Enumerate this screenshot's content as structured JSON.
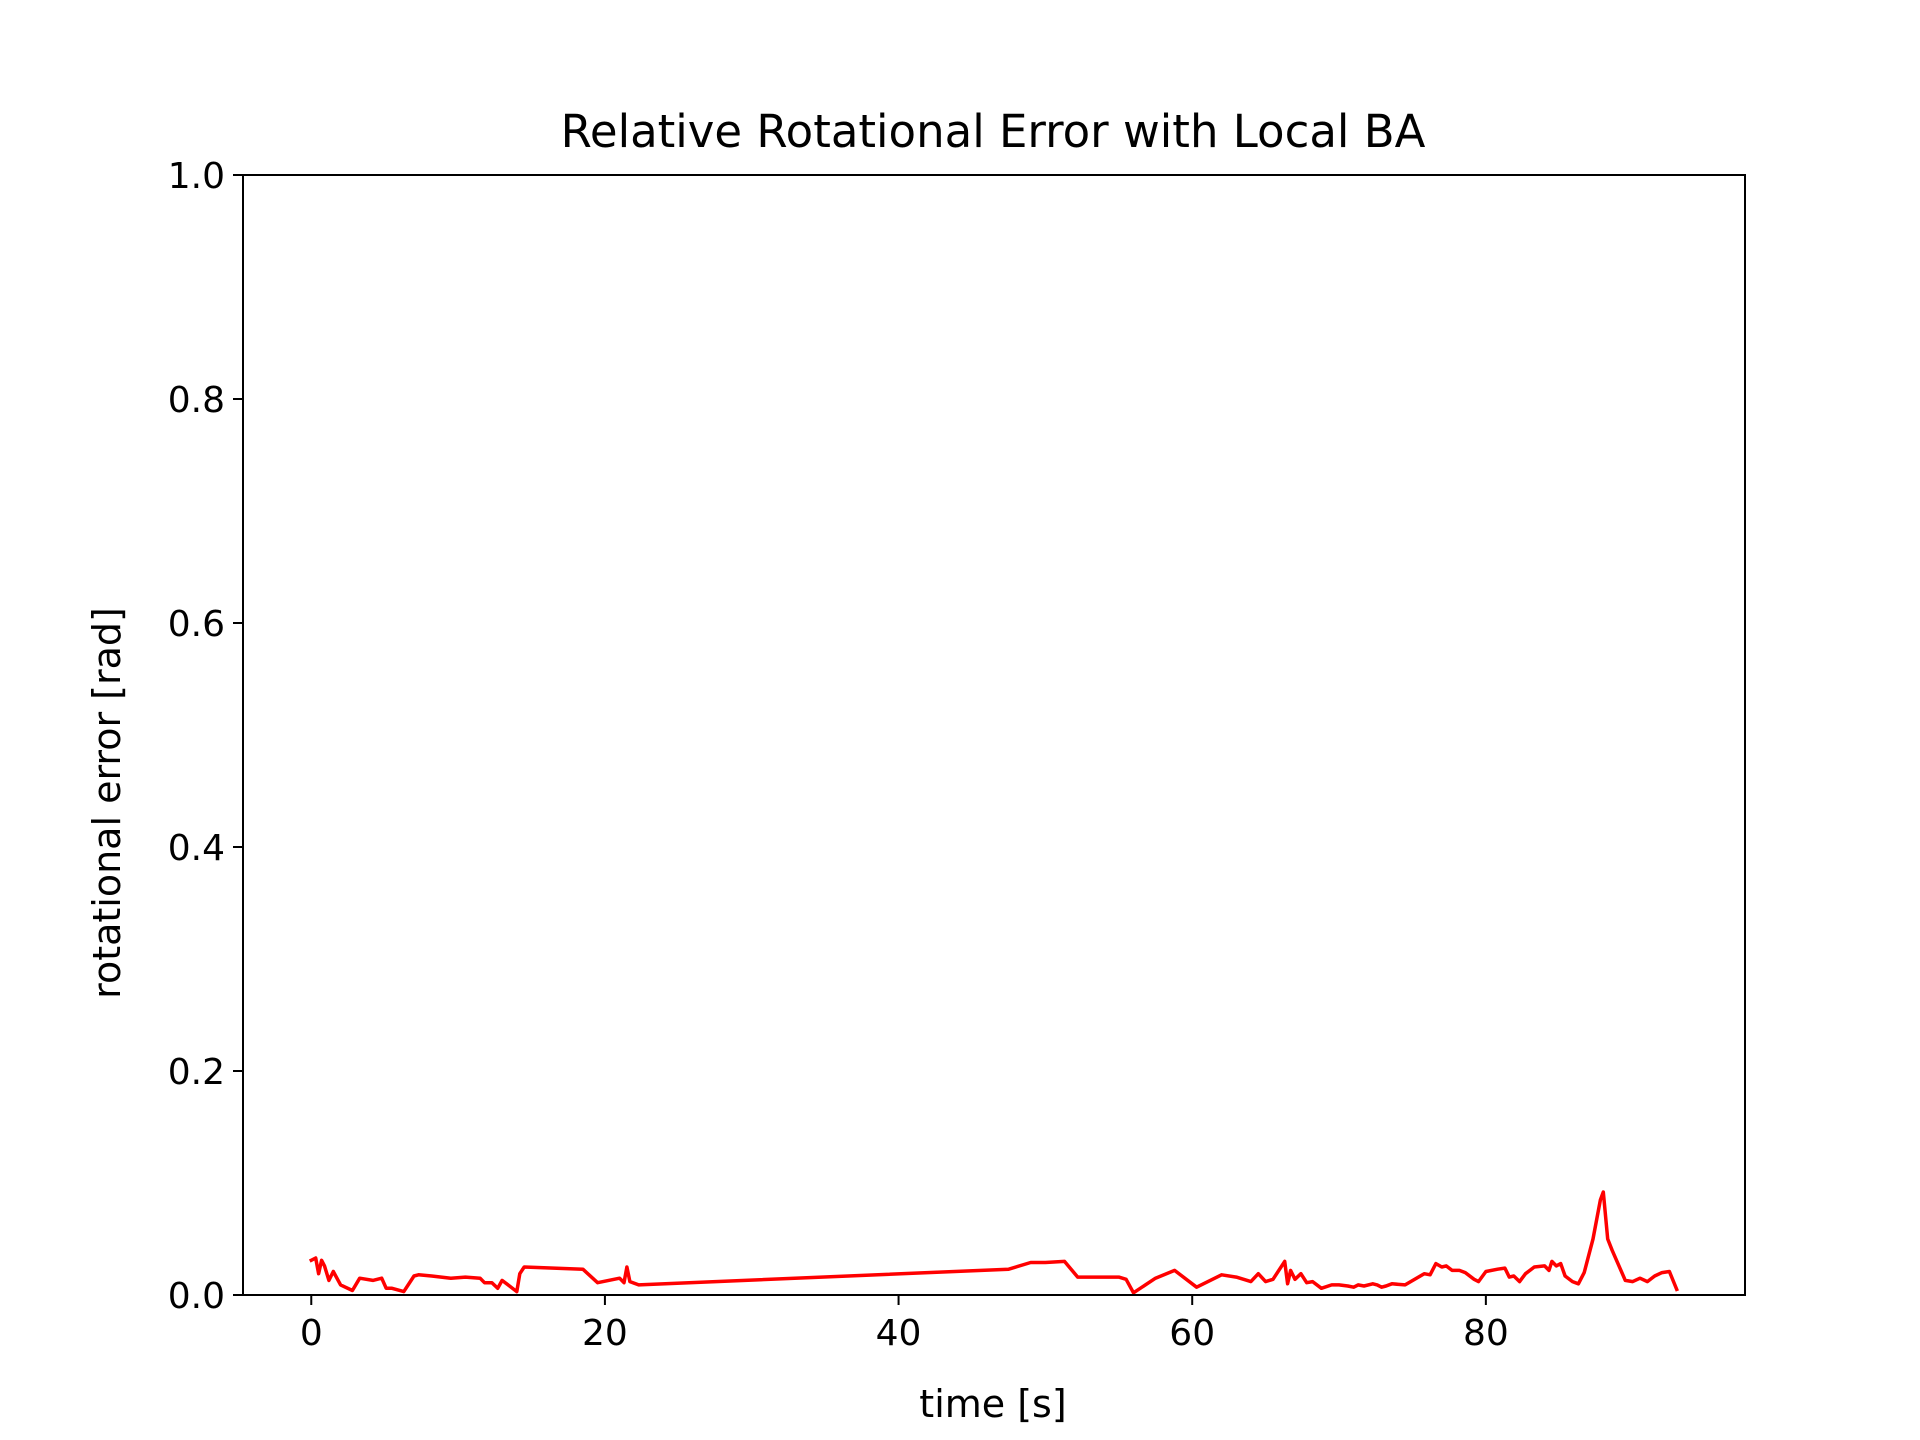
{
  "chart_data": {
    "type": "line",
    "title": "Relative Rotational Error with Local BA",
    "xlabel": "time [s]",
    "ylabel": "rotational error [rad]",
    "xlim": [
      -4.65,
      97.65
    ],
    "ylim": [
      0.0,
      1.0
    ],
    "xticks": [
      0,
      20,
      40,
      60,
      80
    ],
    "xtick_labels": [
      "0",
      "20",
      "40",
      "60",
      "80"
    ],
    "yticks": [
      0.0,
      0.2,
      0.4,
      0.6,
      0.8,
      1.0
    ],
    "ytick_labels": [
      "0.0",
      "0.2",
      "0.4",
      "0.6",
      "0.8",
      "1.0"
    ],
    "grid": false,
    "legend": "none",
    "series": [
      {
        "color": "#ff0000",
        "x": [
          0.0,
          0.3,
          0.5,
          0.7,
          0.9,
          1.2,
          1.5,
          2.0,
          2.8,
          3.3,
          4.2,
          4.8,
          5.1,
          5.5,
          6.3,
          7.0,
          7.3,
          8.2,
          9.5,
          10.5,
          11.5,
          11.8,
          12.3,
          12.7,
          13.0,
          13.5,
          14.0,
          14.2,
          14.5,
          18.5,
          19.5,
          21.0,
          21.3,
          21.5,
          21.7,
          22.3,
          47.5,
          49.0,
          50.0,
          51.3,
          52.2,
          55.0,
          55.5,
          56.0,
          57.5,
          58.8,
          60.3,
          62.0,
          63.0,
          64.0,
          64.5,
          65.0,
          65.5,
          66.3,
          66.5,
          66.7,
          67.0,
          67.4,
          67.8,
          68.2,
          68.8,
          69.5,
          70.0,
          70.6,
          71.0,
          71.3,
          71.7,
          72.3,
          72.6,
          72.9,
          73.2,
          73.6,
          74.5,
          75.8,
          76.2,
          76.6,
          77.0,
          77.3,
          77.7,
          78.2,
          78.6,
          79.2,
          79.5,
          80.0,
          80.8,
          81.3,
          81.6,
          81.9,
          82.3,
          82.7,
          83.3,
          84.0,
          84.3,
          84.5,
          84.8,
          85.1,
          85.4,
          85.9,
          86.3,
          86.7,
          87.3,
          87.8,
          88.0,
          88.3,
          88.6,
          89.5,
          90.0,
          90.5,
          91.0,
          91.5,
          92.0,
          92.5,
          93.0
        ],
        "y": [
          0.031,
          0.033,
          0.019,
          0.031,
          0.026,
          0.013,
          0.021,
          0.009,
          0.004,
          0.015,
          0.013,
          0.015,
          0.006,
          0.006,
          0.003,
          0.017,
          0.018,
          0.017,
          0.015,
          0.016,
          0.015,
          0.011,
          0.011,
          0.006,
          0.013,
          0.008,
          0.003,
          0.019,
          0.025,
          0.023,
          0.011,
          0.015,
          0.011,
          0.025,
          0.012,
          0.009,
          0.023,
          0.029,
          0.029,
          0.03,
          0.016,
          0.016,
          0.014,
          0.002,
          0.015,
          0.022,
          0.007,
          0.018,
          0.016,
          0.012,
          0.019,
          0.012,
          0.014,
          0.03,
          0.01,
          0.022,
          0.014,
          0.019,
          0.011,
          0.012,
          0.006,
          0.009,
          0.009,
          0.008,
          0.007,
          0.009,
          0.008,
          0.01,
          0.009,
          0.007,
          0.008,
          0.01,
          0.009,
          0.019,
          0.018,
          0.028,
          0.025,
          0.026,
          0.022,
          0.022,
          0.02,
          0.014,
          0.012,
          0.021,
          0.023,
          0.024,
          0.016,
          0.017,
          0.012,
          0.019,
          0.025,
          0.026,
          0.022,
          0.03,
          0.026,
          0.028,
          0.017,
          0.012,
          0.01,
          0.02,
          0.05,
          0.085,
          0.092,
          0.05,
          0.04,
          0.013,
          0.012,
          0.015,
          0.012,
          0.017,
          0.02,
          0.021,
          0.005
        ]
      }
    ]
  }
}
